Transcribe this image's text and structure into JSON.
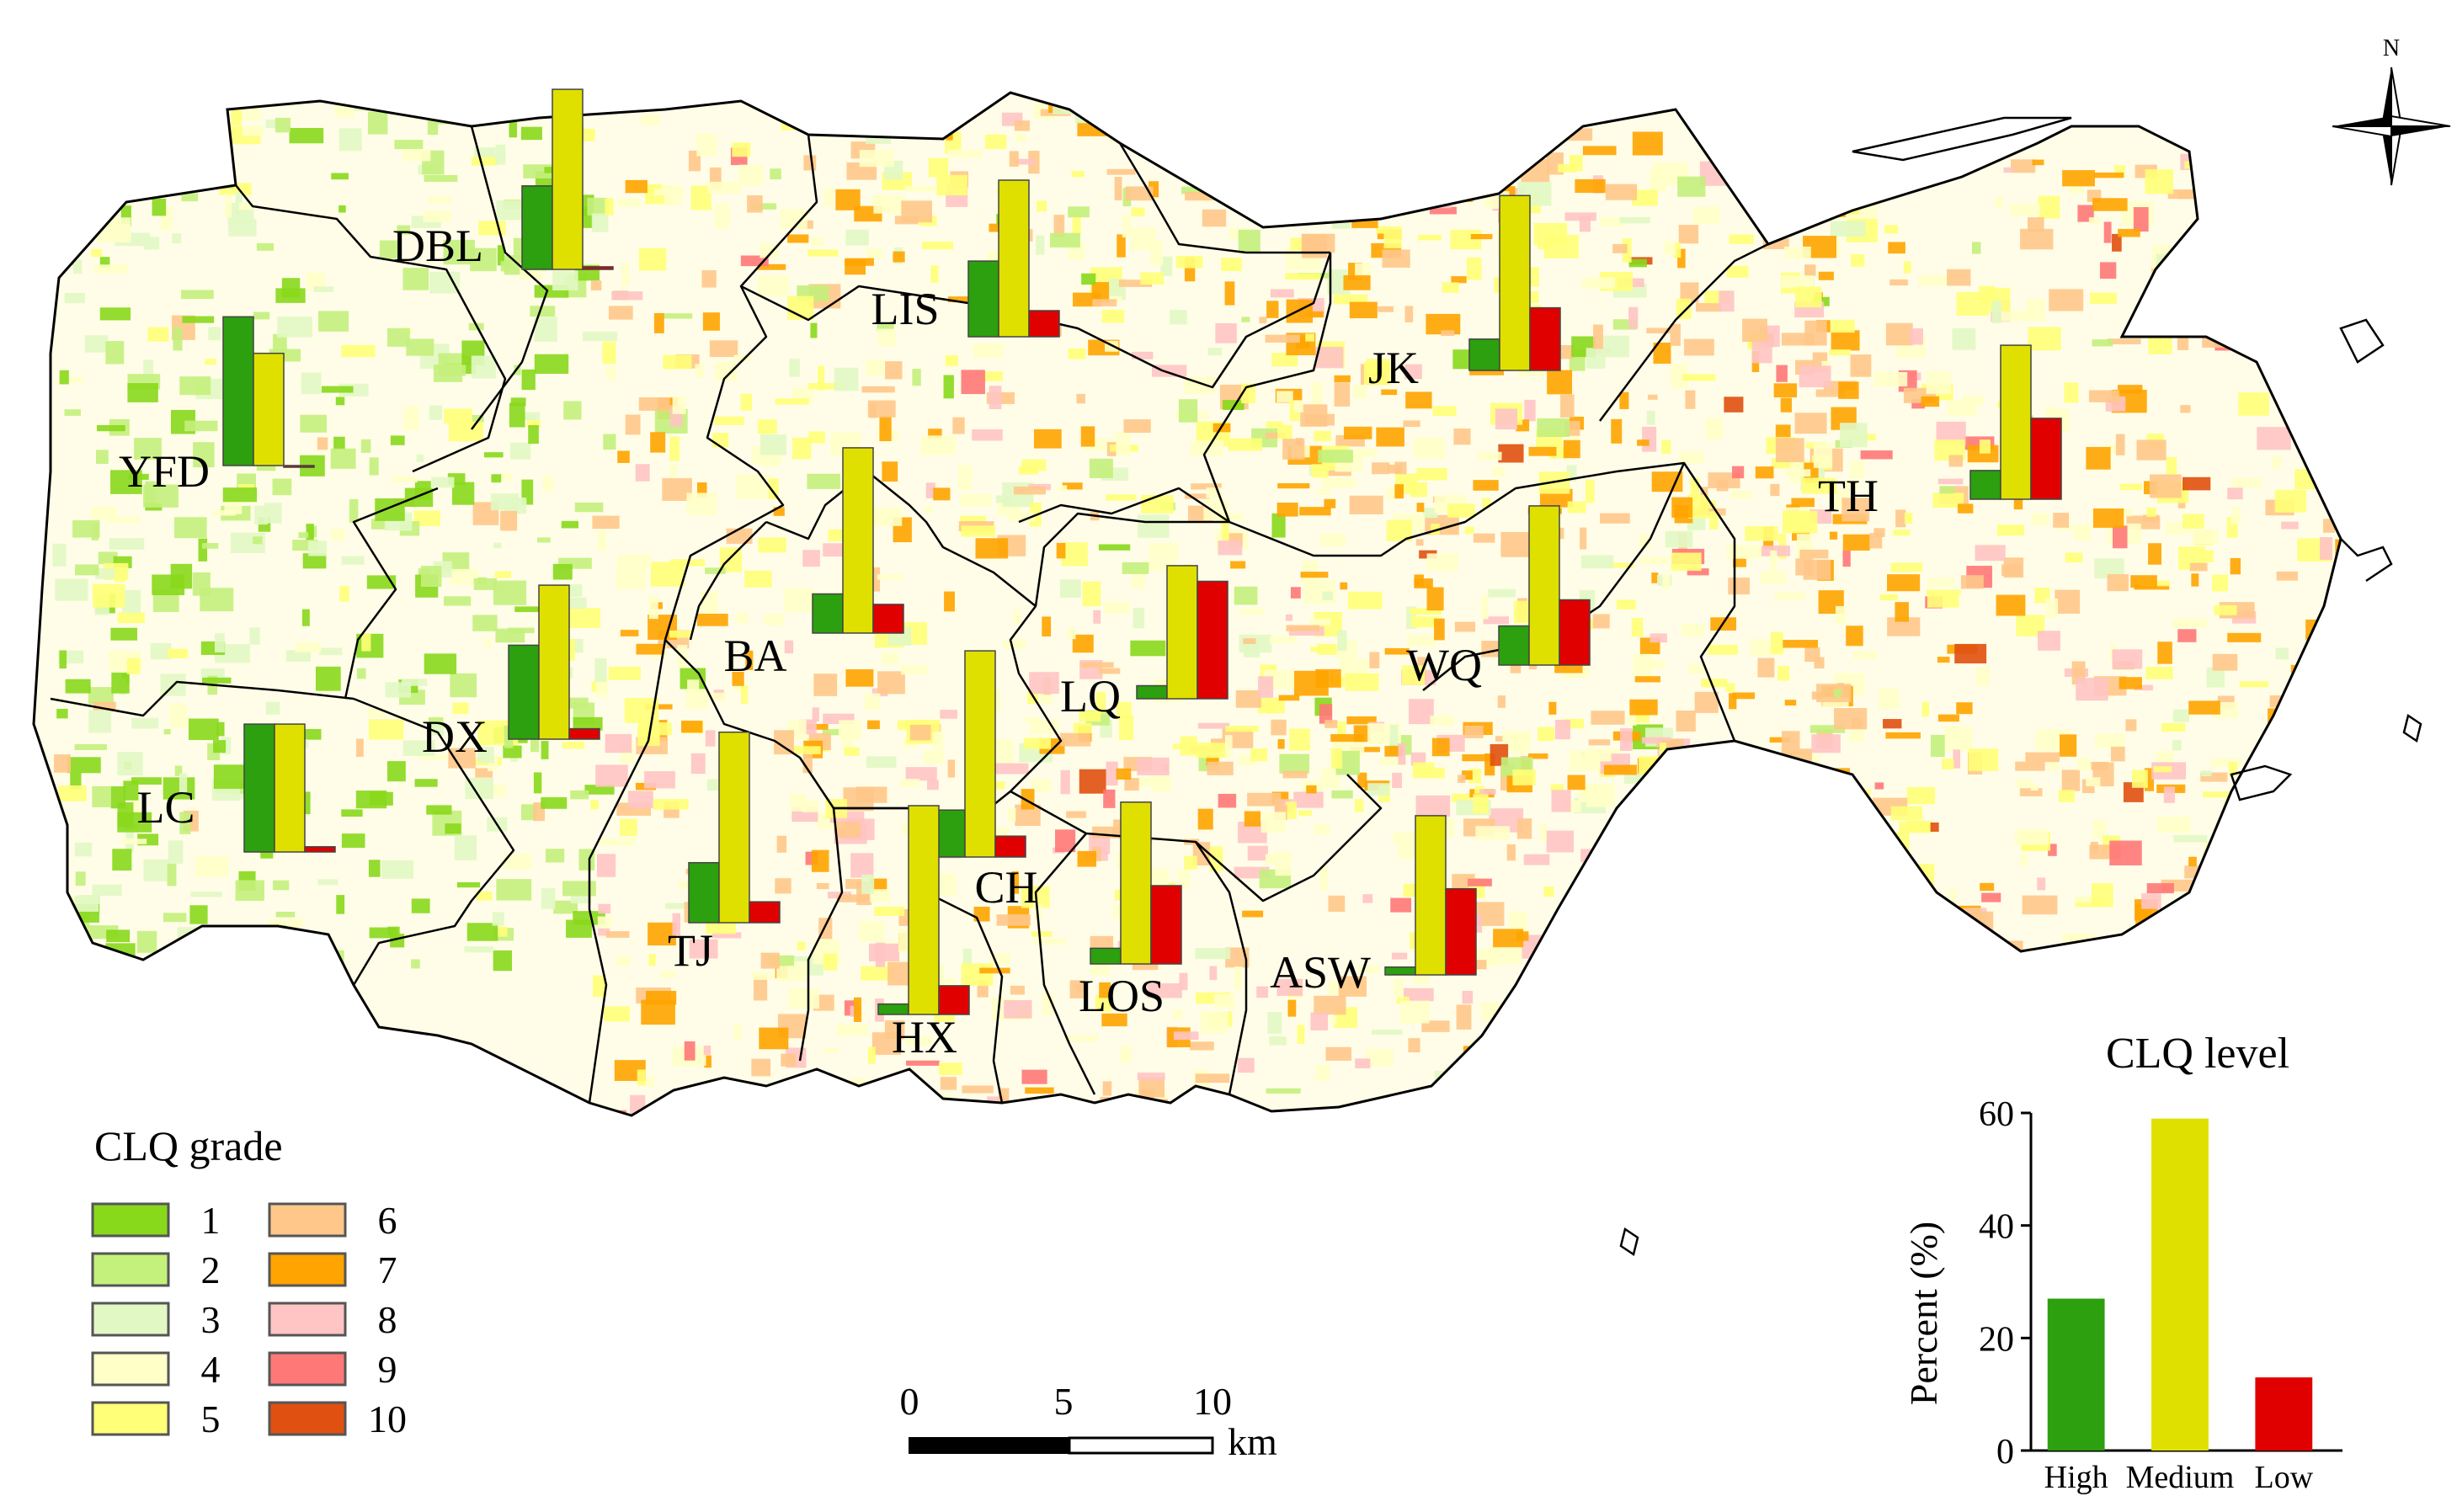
{
  "map": {
    "north_label": "N",
    "region_labels": [
      "DBL",
      "LIS",
      "JK",
      "YFD",
      "TH",
      "BA",
      "LQ",
      "WQ",
      "DX",
      "LC",
      "CH",
      "TJ",
      "LOS",
      "ASW",
      "HX"
    ],
    "legend": {
      "title": "CLQ grade",
      "items": [
        {
          "label": "1",
          "color": "#88d81c"
        },
        {
          "label": "2",
          "color": "#c4f07c"
        },
        {
          "label": "3",
          "color": "#e2f8c4"
        },
        {
          "label": "4",
          "color": "#ffffc8"
        },
        {
          "label": "5",
          "color": "#ffff78"
        },
        {
          "label": "6",
          "color": "#ffc88a"
        },
        {
          "label": "7",
          "color": "#ffa400"
        },
        {
          "label": "8",
          "color": "#ffc4c4"
        },
        {
          "label": "9",
          "color": "#ff7878"
        },
        {
          "label": "10",
          "color": "#e05010"
        }
      ]
    },
    "scalebar": {
      "ticks": [
        "0",
        "5",
        "10"
      ],
      "unit": "km"
    },
    "level_colors": {
      "High": "#2ca00e",
      "Medium": "#e0e000",
      "Low": "#e00000"
    }
  },
  "chart_data": [
    {
      "type": "bar",
      "title": "CLQ level",
      "xlabel": "",
      "ylabel": "Percent (%)",
      "categories": [
        "High",
        "Medium",
        "Low"
      ],
      "values": [
        27,
        59,
        13
      ],
      "ylim": [
        0,
        60
      ],
      "yticks": [
        "0",
        "20",
        "40",
        "60"
      ],
      "colors": [
        "#2ca00e",
        "#e0e000",
        "#e00000"
      ],
      "grid": false
    },
    {
      "type": "bar",
      "title": "",
      "categories": [
        "High",
        "Medium",
        "Low"
      ],
      "series": [
        {
          "region": "DBL",
          "values": [
            32,
            69,
            1
          ]
        },
        {
          "region": "LIS",
          "values": [
            29,
            60,
            10
          ]
        },
        {
          "region": "JK",
          "values": [
            12,
            67,
            24
          ]
        },
        {
          "region": "YFD",
          "values": [
            57,
            43,
            0
          ]
        },
        {
          "region": "TH",
          "values": [
            11,
            59,
            31
          ]
        },
        {
          "region": "BA",
          "values": [
            15,
            71,
            11
          ]
        },
        {
          "region": "LQ",
          "values": [
            5,
            51,
            45
          ]
        },
        {
          "region": "WQ",
          "values": [
            15,
            61,
            25
          ]
        },
        {
          "region": "DX",
          "values": [
            36,
            59,
            4
          ]
        },
        {
          "region": "LC",
          "values": [
            49,
            49,
            2
          ]
        },
        {
          "region": "CH",
          "values": [
            18,
            79,
            8
          ]
        },
        {
          "region": "TJ",
          "values": [
            23,
            73,
            8
          ]
        },
        {
          "region": "LOS",
          "values": [
            6,
            62,
            30
          ]
        },
        {
          "region": "ASW",
          "values": [
            3,
            61,
            33
          ]
        },
        {
          "region": "HX",
          "values": [
            4,
            80,
            11
          ]
        }
      ]
    }
  ]
}
